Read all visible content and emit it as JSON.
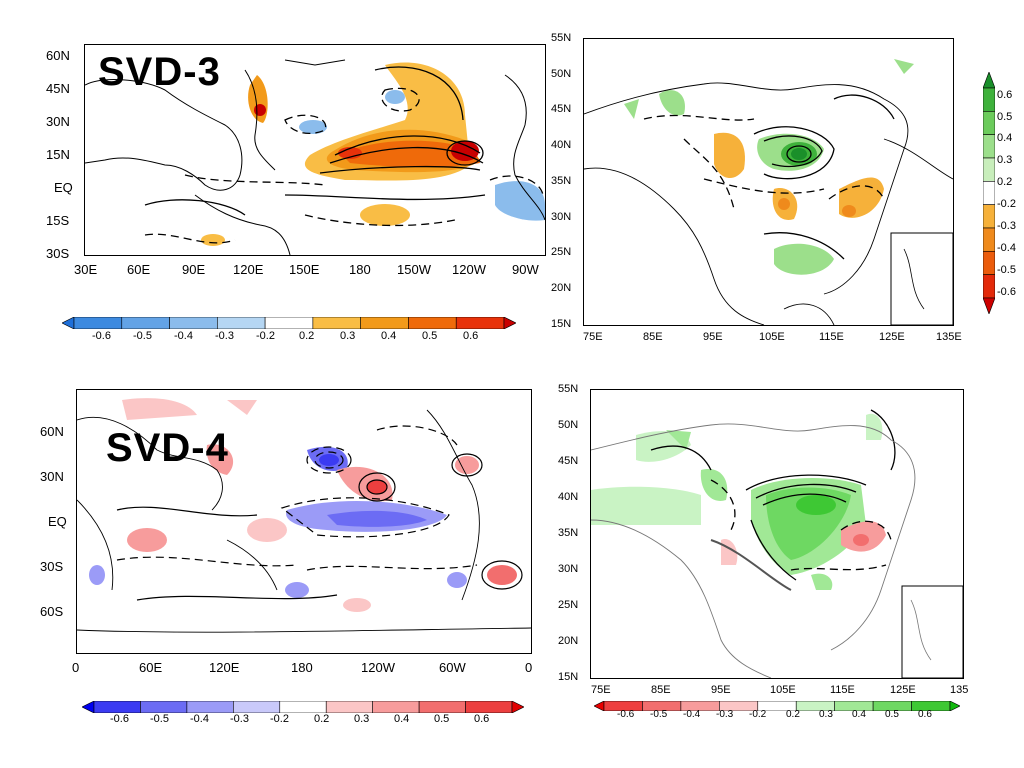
{
  "panels": {
    "svd3_sst": {
      "title": "SVD-3",
      "lat_labels": [
        "60N",
        "45N",
        "30N",
        "15N",
        "EQ",
        "15S",
        "30S"
      ],
      "lon_labels": [
        "30E",
        "60E",
        "90E",
        "120E",
        "150E",
        "180",
        "150W",
        "120W",
        "90W"
      ],
      "colorbar": {
        "labels": [
          "-0.6",
          "-0.5",
          "-0.4",
          "-0.3",
          "-0.2",
          "0.2",
          "0.3",
          "0.4",
          "0.5",
          "0.6"
        ],
        "colors": [
          "#1e6fd9",
          "#3d8ae0",
          "#63a3e6",
          "#8bbcec",
          "#b5d6f3",
          "#ffffff",
          "#f9bd45",
          "#f29a1a",
          "#ef6a0a",
          "#e8320a",
          "#c80000"
        ]
      }
    },
    "svd3_china": {
      "lat_labels": [
        "55N",
        "50N",
        "45N",
        "40N",
        "35N",
        "30N",
        "25N",
        "20N",
        "15N"
      ],
      "lon_labels": [
        "75E",
        "85E",
        "95E",
        "105E",
        "115E",
        "125E",
        "135E"
      ],
      "colorbar": {
        "labels": [
          "0.6",
          "0.5",
          "0.4",
          "0.3",
          "0.2",
          "-0.2",
          "-0.3",
          "-0.4",
          "-0.5",
          "-0.6"
        ],
        "colors": [
          "#1a8f2a",
          "#3fb23c",
          "#6ccc5c",
          "#9cdf8b",
          "#c8eebb",
          "#ffffff",
          "#f6b13a",
          "#ef8a1c",
          "#eb5c0c",
          "#e32a0a",
          "#cc0000"
        ]
      }
    },
    "svd4_sst": {
      "title": "SVD-4",
      "lat_labels": [
        "60N",
        "30N",
        "EQ",
        "30S",
        "60S"
      ],
      "lon_labels": [
        "0",
        "60E",
        "120E",
        "180",
        "120W",
        "60W",
        "0"
      ],
      "colorbar": {
        "labels": [
          "-0.6",
          "-0.5",
          "-0.4",
          "-0.3",
          "-0.2",
          "0.2",
          "0.3",
          "0.4",
          "0.5",
          "0.6"
        ],
        "colors": [
          "#0000ee",
          "#3b3bf2",
          "#6c6cf4",
          "#9b9bf7",
          "#c9c9fa",
          "#ffffff",
          "#fbc6c6",
          "#f79c9c",
          "#f26e6e",
          "#ec3f3f",
          "#e00000"
        ]
      }
    },
    "svd4_china": {
      "lat_labels": [
        "55N",
        "50N",
        "45N",
        "40N",
        "35N",
        "30N",
        "25N",
        "20N",
        "15N"
      ],
      "lon_labels": [
        "75E",
        "85E",
        "95E",
        "105E",
        "115E",
        "125E",
        "135"
      ],
      "colorbar": {
        "labels": [
          "-0.6",
          "-0.5",
          "-0.4",
          "-0.3",
          "-0.2",
          "0.2",
          "0.3",
          "0.4",
          "0.5",
          "0.6"
        ],
        "colors": [
          "#e80000",
          "#ee3f3f",
          "#f26e6e",
          "#f79c9c",
          "#fbc6c6",
          "#ffffff",
          "#c9f3c4",
          "#a1e896",
          "#6ed862",
          "#3ec834",
          "#11b80e"
        ]
      }
    }
  }
}
